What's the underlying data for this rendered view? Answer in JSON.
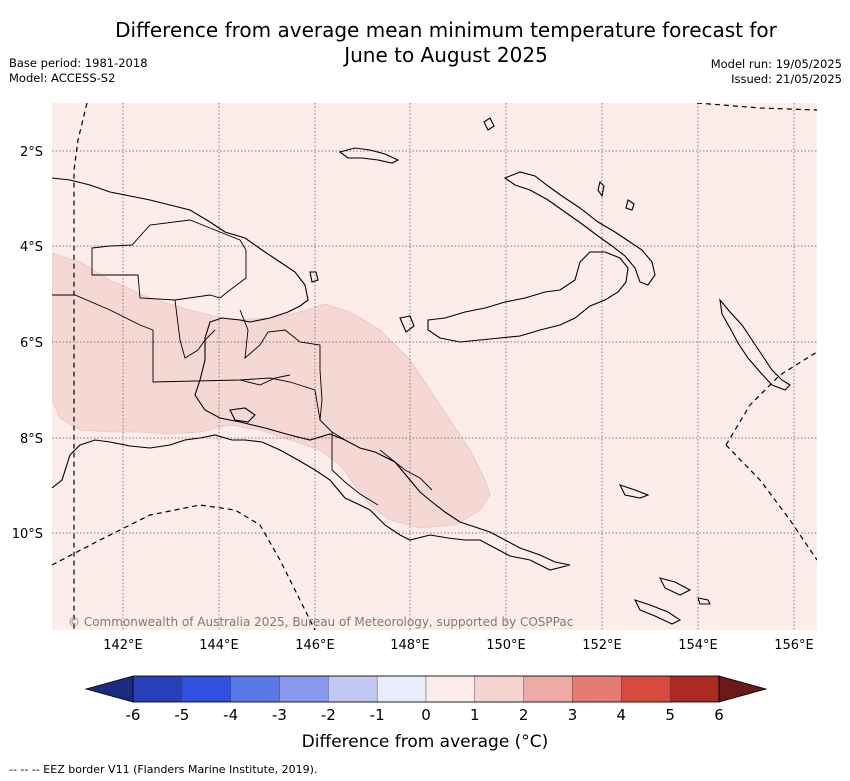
{
  "title_line1": "Difference from average mean minimum temperature forecast for",
  "title_line2": "June to August 2025",
  "base_period": "Base period: 1981-2018",
  "model": "Model: ACCESS-S2",
  "model_run": "Model run: 19/05/2025",
  "issued": "Issued: 21/05/2025",
  "attribution": "© Commonwealth of Australia 2025, Bureau of Meteorology, supported by COSPPac",
  "lat_labels": [
    "2°S",
    "4°S",
    "6°S",
    "8°S",
    "10°S"
  ],
  "lon_labels": [
    "142°E",
    "144°E",
    "146°E",
    "148°E",
    "150°E",
    "152°E",
    "154°E",
    "156°E"
  ],
  "colorbar": {
    "title": "Difference from average (°C)",
    "ticks": [
      "-6",
      "-5",
      "-4",
      "-3",
      "-2",
      "-1",
      "0",
      "1",
      "2",
      "3",
      "4",
      "5",
      "6"
    ],
    "colors": [
      "#1a2a80",
      "#2540b8",
      "#3050e0",
      "#5a78e6",
      "#8898ec",
      "#c2c8f4",
      "#e8ecfb",
      "#fcecea",
      "#f5d4d0",
      "#eeaaa6",
      "#e47c74",
      "#d84a3e",
      "#ab2a22",
      "#6a1a18"
    ]
  },
  "map": {
    "background_anomaly_color": "#fcecea",
    "warmer_anomaly_color": "#f5d8d4",
    "coast_color": "#000000"
  },
  "footnote": "--  --  -- EEZ border V11 (Flanders Marine Institute, 2019)."
}
